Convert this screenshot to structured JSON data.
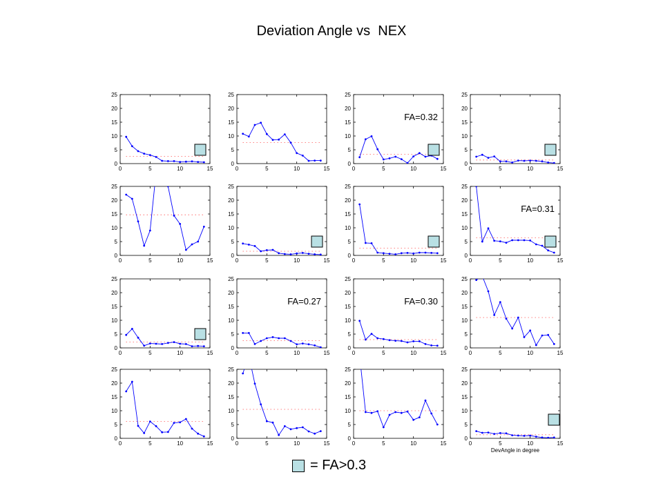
{
  "title": "Deviation Angle vs  NEX",
  "legend": {
    "text": "= FA>0.3",
    "color": "#b9e0e4"
  },
  "colors": {
    "series": "#0000ff",
    "mean": "#ff0000",
    "highlight": "#b9e0e4"
  },
  "chart_data": [
    {
      "type": "line",
      "row": 0,
      "col": 0,
      "x": [
        1,
        2,
        3,
        4,
        5,
        6,
        7,
        8,
        9,
        10,
        11,
        12,
        13,
        14
      ],
      "values": [
        9.7,
        6.3,
        4.5,
        3.6,
        3.1,
        2.4,
        1.0,
        0.9,
        0.9,
        0.6,
        0.7,
        0.8,
        0.6,
        0.5
      ],
      "mean": 2.6,
      "ylim": [
        0,
        25
      ],
      "xlim": [
        0,
        15
      ],
      "xticks": [
        0,
        5,
        10,
        15
      ],
      "yticks": [
        0,
        5,
        10,
        15,
        20,
        25
      ],
      "fa_label": "",
      "highlight": true
    },
    {
      "type": "line",
      "row": 0,
      "col": 1,
      "x": [
        1,
        2,
        3,
        4,
        5,
        6,
        7,
        8,
        9,
        10,
        11,
        12,
        13,
        14
      ],
      "values": [
        10.8,
        9.8,
        14.0,
        14.8,
        10.7,
        8.6,
        8.7,
        10.6,
        7.6,
        3.8,
        2.9,
        1.0,
        1.1,
        1.1
      ],
      "mean": 7.6,
      "ylim": [
        0,
        25
      ],
      "xlim": [
        0,
        15
      ],
      "xticks": [
        0,
        5,
        10,
        15
      ],
      "yticks": [
        0,
        5,
        10,
        15,
        20,
        25
      ],
      "fa_label": "",
      "highlight": false
    },
    {
      "type": "line",
      "row": 0,
      "col": 2,
      "x": [
        1,
        2,
        3,
        4,
        5,
        6,
        7,
        8,
        9,
        10,
        11,
        12,
        13,
        14
      ],
      "values": [
        2.3,
        8.8,
        9.9,
        5.2,
        1.5,
        1.9,
        2.5,
        1.6,
        0.2,
        2.6,
        3.8,
        2.5,
        2.9,
        1.7
      ],
      "mean": 3.4,
      "ylim": [
        0,
        25
      ],
      "xlim": [
        0,
        15
      ],
      "xticks": [
        0,
        5,
        10,
        15
      ],
      "yticks": [
        0,
        5,
        10,
        15,
        20,
        25
      ],
      "fa_label": "FA=0.32",
      "highlight": true
    },
    {
      "type": "line",
      "row": 0,
      "col": 3,
      "x": [
        1,
        2,
        3,
        4,
        5,
        6,
        7,
        8,
        9,
        10,
        11,
        12,
        13,
        14
      ],
      "values": [
        2.5,
        3.2,
        2.1,
        2.6,
        0.8,
        0.8,
        0.4,
        1.1,
        1.0,
        1.1,
        1.0,
        0.8,
        0.4,
        0.2
      ],
      "mean": 1.3,
      "ylim": [
        0,
        25
      ],
      "xlim": [
        0,
        15
      ],
      "xticks": [
        0,
        5,
        10,
        15
      ],
      "yticks": [
        0,
        5,
        10,
        15,
        20,
        25
      ],
      "fa_label": "",
      "highlight": true
    },
    {
      "type": "line",
      "row": 1,
      "col": 0,
      "x": [
        1,
        2,
        3,
        4,
        5,
        6,
        7,
        8,
        9,
        10,
        11,
        12,
        13,
        14
      ],
      "values": [
        22.0,
        20.5,
        12.3,
        3.5,
        9.0,
        30,
        30,
        25,
        14.4,
        11.4,
        2.0,
        4.0,
        5.0,
        10.4
      ],
      "mean": 14.7,
      "ylim": [
        0,
        25
      ],
      "xlim": [
        0,
        15
      ],
      "xticks": [
        0,
        5,
        10,
        15
      ],
      "yticks": [
        0,
        5,
        10,
        15,
        20,
        25
      ],
      "fa_label": "",
      "highlight": false
    },
    {
      "type": "line",
      "row": 1,
      "col": 1,
      "x": [
        1,
        2,
        3,
        4,
        5,
        6,
        7,
        8,
        9,
        10,
        11,
        12,
        13,
        14
      ],
      "values": [
        4.3,
        3.9,
        3.4,
        1.5,
        1.9,
        2.0,
        0.8,
        0.5,
        0.4,
        0.7,
        0.9,
        0.6,
        0.4,
        0.3
      ],
      "mean": 1.5,
      "ylim": [
        0,
        25
      ],
      "xlim": [
        0,
        15
      ],
      "xticks": [
        0,
        5,
        10,
        15
      ],
      "yticks": [
        0,
        5,
        10,
        15,
        20,
        25
      ],
      "fa_label": "",
      "highlight": true
    },
    {
      "type": "line",
      "row": 1,
      "col": 2,
      "x": [
        1,
        2,
        3,
        4,
        5,
        6,
        7,
        8,
        9,
        10,
        11,
        12,
        13,
        14
      ],
      "values": [
        18.5,
        4.5,
        4.4,
        1.0,
        0.8,
        0.6,
        0.4,
        0.8,
        0.9,
        0.7,
        1.0,
        1.0,
        0.9,
        0.8
      ],
      "mean": 2.6,
      "ylim": [
        0,
        25
      ],
      "xlim": [
        0,
        15
      ],
      "xticks": [
        0,
        5,
        10,
        15
      ],
      "yticks": [
        0,
        5,
        10,
        15,
        20,
        25
      ],
      "fa_label": "",
      "highlight": true
    },
    {
      "type": "line",
      "row": 1,
      "col": 3,
      "x": [
        1,
        2,
        3,
        4,
        5,
        6,
        7,
        8,
        9,
        10,
        11,
        12,
        13,
        14
      ],
      "values": [
        25.0,
        5.0,
        9.8,
        5.3,
        5.1,
        4.6,
        5.5,
        5.5,
        5.5,
        5.4,
        4.0,
        3.5,
        1.8,
        1.0
      ],
      "mean": 6.4,
      "ylim": [
        0,
        25
      ],
      "xlim": [
        0,
        15
      ],
      "xticks": [
        0,
        5,
        10,
        15
      ],
      "yticks": [
        0,
        5,
        10,
        15,
        20,
        25
      ],
      "fa_label": "FA=0.31",
      "highlight": true
    },
    {
      "type": "line",
      "row": 2,
      "col": 0,
      "x": [
        1,
        2,
        3,
        4,
        5,
        6,
        7,
        8,
        9,
        10,
        11,
        12,
        13,
        14
      ],
      "values": [
        4.7,
        6.9,
        3.7,
        0.8,
        1.6,
        1.5,
        1.4,
        1.8,
        2.1,
        1.5,
        1.4,
        0.6,
        0.7,
        0.6
      ],
      "mean": 2.1,
      "ylim": [
        0,
        25
      ],
      "xlim": [
        0,
        15
      ],
      "xticks": [
        0,
        5,
        10,
        15
      ],
      "yticks": [
        0,
        5,
        10,
        15,
        20,
        25
      ],
      "fa_label": "",
      "highlight": true
    },
    {
      "type": "line",
      "row": 2,
      "col": 1,
      "x": [
        1,
        2,
        3,
        4,
        5,
        6,
        7,
        8,
        9,
        10,
        11,
        12,
        13,
        14
      ],
      "values": [
        5.4,
        5.4,
        1.4,
        2.5,
        3.5,
        3.9,
        3.5,
        3.5,
        2.5,
        1.3,
        1.6,
        1.3,
        0.9,
        0.2
      ],
      "mean": 2.6,
      "ylim": [
        0,
        25
      ],
      "xlim": [
        0,
        15
      ],
      "xticks": [
        0,
        5,
        10,
        15
      ],
      "yticks": [
        0,
        5,
        10,
        15,
        20,
        25
      ],
      "fa_label": "FA=0.27",
      "highlight": false
    },
    {
      "type": "line",
      "row": 2,
      "col": 2,
      "x": [
        1,
        2,
        3,
        4,
        5,
        6,
        7,
        8,
        9,
        10,
        11,
        12,
        13,
        14
      ],
      "values": [
        9.8,
        3.0,
        5.1,
        3.5,
        3.2,
        2.8,
        2.6,
        2.5,
        2.0,
        2.4,
        2.4,
        1.4,
        0.9,
        0.8
      ],
      "mean": 3.0,
      "ylim": [
        0,
        25
      ],
      "xlim": [
        0,
        15
      ],
      "xticks": [
        0,
        5,
        10,
        15
      ],
      "yticks": [
        0,
        5,
        10,
        15,
        20,
        25
      ],
      "fa_label": "FA=0.30",
      "highlight": false
    },
    {
      "type": "line",
      "row": 2,
      "col": 3,
      "x": [
        1,
        2,
        3,
        4,
        5,
        6,
        7,
        8,
        9,
        10,
        11,
        12,
        13,
        14
      ],
      "values": [
        24.6,
        26.0,
        20.5,
        11.9,
        16.6,
        10.6,
        7.0,
        11.0,
        3.9,
        6.3,
        1.0,
        4.5,
        4.7,
        1.4
      ],
      "mean": 11.0,
      "ylim": [
        0,
        25
      ],
      "xlim": [
        0,
        15
      ],
      "xticks": [
        0,
        5,
        10,
        15
      ],
      "yticks": [
        0,
        5,
        10,
        15,
        20,
        25
      ],
      "fa_label": "",
      "highlight": false
    },
    {
      "type": "line",
      "row": 3,
      "col": 0,
      "x": [
        1,
        2,
        3,
        4,
        5,
        6,
        7,
        8,
        9,
        10,
        11,
        12,
        13,
        14
      ],
      "values": [
        17.0,
        20.5,
        4.5,
        1.9,
        6.1,
        4.4,
        2.2,
        2.3,
        5.6,
        5.8,
        7.0,
        3.5,
        1.7,
        0.7
      ],
      "mean": 6.1,
      "ylim": [
        0,
        25
      ],
      "xlim": [
        0,
        15
      ],
      "xticks": [
        0,
        5,
        10,
        15
      ],
      "yticks": [
        0,
        5,
        10,
        15,
        20,
        25
      ],
      "fa_label": "",
      "highlight": false
    },
    {
      "type": "line",
      "row": 3,
      "col": 1,
      "x": [
        1,
        2,
        3,
        4,
        5,
        6,
        7,
        8,
        9,
        10,
        11,
        12,
        13,
        14
      ],
      "values": [
        23.5,
        30,
        19.8,
        12.3,
        6.2,
        5.7,
        1.2,
        4.4,
        3.3,
        3.7,
        4.0,
        2.5,
        1.7,
        2.6
      ],
      "mean": 10.5,
      "ylim": [
        0,
        25
      ],
      "xlim": [
        0,
        15
      ],
      "xticks": [
        0,
        5,
        10,
        15
      ],
      "yticks": [
        0,
        5,
        10,
        15,
        20,
        25
      ],
      "fa_label": "",
      "highlight": false
    },
    {
      "type": "line",
      "row": 3,
      "col": 2,
      "x": [
        1,
        2,
        3,
        4,
        5,
        6,
        7,
        8,
        9,
        10,
        11,
        12,
        13,
        14
      ],
      "values": [
        30,
        9.5,
        9.2,
        9.8,
        4.0,
        8.5,
        9.5,
        9.2,
        9.7,
        6.7,
        7.6,
        13.7,
        9.0,
        5.0
      ],
      "mean": 10.0,
      "ylim": [
        0,
        25
      ],
      "xlim": [
        0,
        15
      ],
      "xticks": [
        0,
        5,
        10,
        15
      ],
      "yticks": [
        0,
        5,
        10,
        15,
        20,
        25
      ],
      "fa_label": "",
      "highlight": false
    },
    {
      "type": "line",
      "row": 3,
      "col": 3,
      "x": [
        1,
        2,
        3,
        4,
        5,
        6,
        7,
        8,
        9,
        10,
        11,
        12,
        13,
        14
      ],
      "values": [
        2.6,
        2.0,
        2.1,
        1.6,
        1.9,
        1.8,
        1.1,
        1.0,
        0.9,
        1.0,
        0.6,
        0.3,
        0.2,
        0.3
      ],
      "mean": 1.3,
      "ylim": [
        0,
        25
      ],
      "xlim": [
        0,
        15
      ],
      "xticks": [
        0,
        5,
        10,
        15
      ],
      "yticks": [
        0,
        5,
        10,
        15,
        20,
        25
      ],
      "fa_label": "",
      "highlight": true,
      "xlabel": "DevAngle in degree"
    }
  ]
}
